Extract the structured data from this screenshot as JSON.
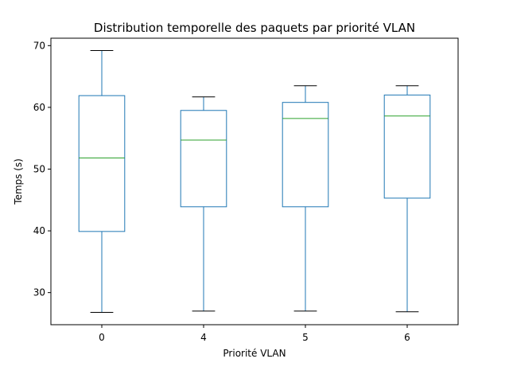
{
  "chart_data": {
    "type": "box",
    "title": "Distribution temporelle des paquets par priorité VLAN",
    "xlabel": "Priorité VLAN",
    "ylabel": "Temps (s)",
    "ylim": [
      24.8,
      71.2
    ],
    "yticks": [
      30,
      40,
      50,
      60,
      70
    ],
    "grid": false,
    "categories": [
      "0",
      "4",
      "5",
      "6"
    ],
    "boxes": [
      {
        "category": "0",
        "whisker_low": 26.8,
        "q1": 39.9,
        "median": 51.8,
        "q3": 61.9,
        "whisker_high": 69.2
      },
      {
        "category": "4",
        "whisker_low": 27.0,
        "q1": 43.9,
        "median": 54.7,
        "q3": 59.5,
        "whisker_high": 61.7
      },
      {
        "category": "5",
        "whisker_low": 27.0,
        "q1": 43.9,
        "median": 58.2,
        "q3": 60.8,
        "whisker_high": 63.5
      },
      {
        "category": "6",
        "whisker_low": 26.9,
        "q1": 45.3,
        "median": 58.6,
        "q3": 62.0,
        "whisker_high": 63.5
      }
    ],
    "colors": {
      "box": "#1f77b4",
      "median": "#2ca02c",
      "cap": "#000000"
    }
  }
}
